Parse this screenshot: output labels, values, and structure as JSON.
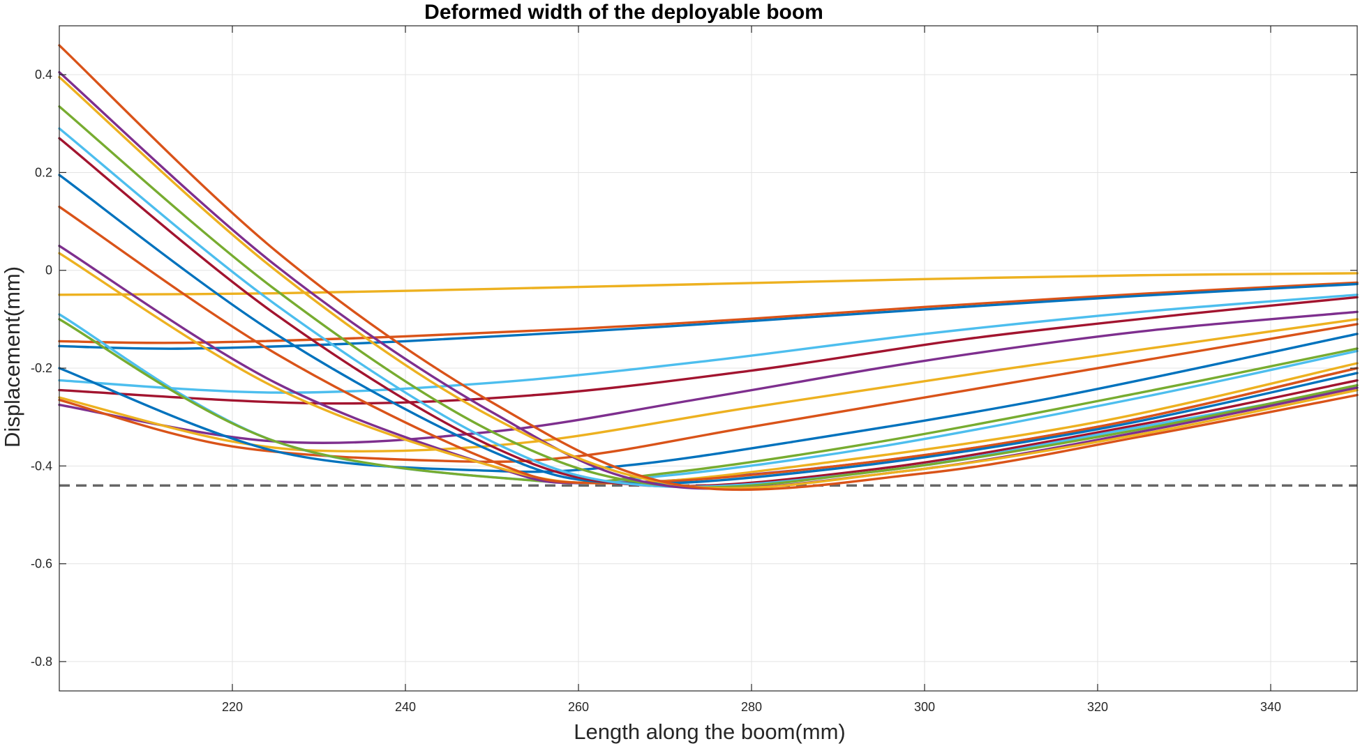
{
  "chart_data": {
    "type": "line",
    "title": "Deformed width of the deployable boom",
    "xlabel": "Length along the boom(mm)",
    "ylabel": "Displacement(mm)",
    "xlim": [
      200,
      350
    ],
    "ylim": [
      -0.86,
      0.5
    ],
    "xticks": [
      220,
      240,
      260,
      280,
      300,
      320,
      340
    ],
    "yticks": [
      0.4,
      0.2,
      0,
      -0.2,
      -0.4,
      -0.6,
      -0.8
    ],
    "xtick_labels": [
      "220",
      "240",
      "260",
      "280",
      "300",
      "320",
      "340"
    ],
    "ytick_labels": [
      "0.4",
      "0.2",
      "0",
      "-0.2",
      "-0.4",
      "-0.6",
      "-0.8"
    ],
    "grid": true,
    "legend": "none",
    "reference_line": {
      "y": -0.44,
      "style": "dashed",
      "color": "#666666"
    },
    "palette": [
      "#EDB120",
      "#D95319",
      "#0072BD",
      "#4DBEEE",
      "#A2142F",
      "#7E2F8E",
      "#77AC30"
    ],
    "series": [
      {
        "color": "#EDB120",
        "x": [
          200,
          225,
          250,
          275,
          300,
          325,
          350
        ],
        "y": [
          -0.05,
          -0.047,
          -0.038,
          -0.028,
          -0.018,
          -0.01,
          -0.006
        ]
      },
      {
        "color": "#D95319",
        "x": [
          200,
          215,
          240,
          270,
          300,
          325,
          350
        ],
        "y": [
          -0.145,
          -0.148,
          -0.135,
          -0.11,
          -0.075,
          -0.048,
          -0.025
        ]
      },
      {
        "color": "#0072BD",
        "x": [
          200,
          215,
          240,
          270,
          300,
          325,
          350
        ],
        "y": [
          -0.155,
          -0.16,
          -0.145,
          -0.115,
          -0.08,
          -0.052,
          -0.028
        ]
      },
      {
        "color": "#4DBEEE",
        "x": [
          200,
          225,
          250,
          275,
          300,
          325,
          350
        ],
        "y": [
          -0.225,
          -0.25,
          -0.23,
          -0.185,
          -0.13,
          -0.085,
          -0.05
        ]
      },
      {
        "color": "#A2142F",
        "x": [
          200,
          230,
          255,
          280,
          305,
          330,
          350
        ],
        "y": [
          -0.245,
          -0.272,
          -0.255,
          -0.205,
          -0.14,
          -0.09,
          -0.055
        ]
      },
      {
        "color": "#7E2F8E",
        "x": [
          200,
          225,
          250,
          275,
          300,
          325,
          350
        ],
        "y": [
          -0.275,
          -0.35,
          -0.33,
          -0.26,
          -0.185,
          -0.125,
          -0.085
        ]
      },
      {
        "color": "#EDB120",
        "x": [
          200,
          220,
          235,
          255,
          280,
          310,
          350
        ],
        "y": [
          -0.26,
          -0.35,
          -0.37,
          -0.35,
          -0.28,
          -0.2,
          -0.1
        ]
      },
      {
        "color": "#D95319",
        "x": [
          200,
          220,
          245,
          260,
          280,
          310,
          350
        ],
        "y": [
          -0.265,
          -0.36,
          -0.39,
          -0.38,
          -0.32,
          -0.23,
          -0.11
        ]
      },
      {
        "color": "#0072BD",
        "x": [
          200,
          225,
          250,
          265,
          285,
          315,
          350
        ],
        "y": [
          -0.2,
          -0.37,
          -0.41,
          -0.4,
          -0.35,
          -0.26,
          -0.13
        ]
      },
      {
        "color": "#4DBEEE",
        "x": [
          200,
          225,
          255,
          270,
          295,
          325,
          350
        ],
        "y": [
          -0.09,
          -0.35,
          -0.43,
          -0.42,
          -0.36,
          -0.26,
          -0.165
        ]
      },
      {
        "color": "#77AC30",
        "x": [
          200,
          225,
          255,
          270,
          295,
          325,
          350
        ],
        "y": [
          -0.1,
          -0.35,
          -0.43,
          -0.415,
          -0.35,
          -0.25,
          -0.16
        ]
      },
      {
        "color": "#7E2F8E",
        "x": [
          200,
          225,
          250,
          262,
          290,
          320,
          350
        ],
        "y": [
          0.05,
          -0.23,
          -0.4,
          -0.435,
          -0.4,
          -0.32,
          -0.2
        ]
      },
      {
        "color": "#EDB120",
        "x": [
          200,
          225,
          250,
          265,
          290,
          320,
          350
        ],
        "y": [
          0.035,
          -0.24,
          -0.4,
          -0.435,
          -0.39,
          -0.31,
          -0.19
        ]
      },
      {
        "color": "#D95319",
        "x": [
          200,
          225,
          250,
          263,
          290,
          320,
          350
        ],
        "y": [
          0.13,
          -0.17,
          -0.39,
          -0.435,
          -0.4,
          -0.32,
          -0.2
        ]
      },
      {
        "color": "#0072BD",
        "x": [
          200,
          225,
          250,
          265,
          290,
          320,
          350
        ],
        "y": [
          0.195,
          -0.13,
          -0.37,
          -0.435,
          -0.405,
          -0.325,
          -0.21
        ]
      },
      {
        "color": "#A2142F",
        "x": [
          200,
          225,
          250,
          268,
          295,
          325,
          350
        ],
        "y": [
          0.27,
          -0.09,
          -0.36,
          -0.44,
          -0.405,
          -0.315,
          -0.225
        ]
      },
      {
        "color": "#4DBEEE",
        "x": [
          200,
          225,
          250,
          268,
          295,
          325,
          350
        ],
        "y": [
          0.29,
          -0.07,
          -0.35,
          -0.44,
          -0.41,
          -0.32,
          -0.24
        ]
      },
      {
        "color": "#77AC30",
        "x": [
          200,
          225,
          250,
          270,
          295,
          325,
          350
        ],
        "y": [
          0.335,
          -0.04,
          -0.33,
          -0.44,
          -0.41,
          -0.325,
          -0.235
        ]
      },
      {
        "color": "#7E2F8E",
        "x": [
          200,
          225,
          250,
          270,
          298,
          325,
          350
        ],
        "y": [
          0.405,
          0.01,
          -0.29,
          -0.44,
          -0.41,
          -0.33,
          -0.24
        ]
      },
      {
        "color": "#EDB120",
        "x": [
          200,
          225,
          250,
          272,
          298,
          325,
          350
        ],
        "y": [
          0.395,
          0.0,
          -0.3,
          -0.44,
          -0.41,
          -0.335,
          -0.245
        ]
      },
      {
        "color": "#D95319",
        "x": [
          200,
          225,
          250,
          272,
          300,
          325,
          350
        ],
        "y": [
          0.46,
          0.04,
          -0.27,
          -0.44,
          -0.415,
          -0.34,
          -0.255
        ]
      }
    ]
  }
}
